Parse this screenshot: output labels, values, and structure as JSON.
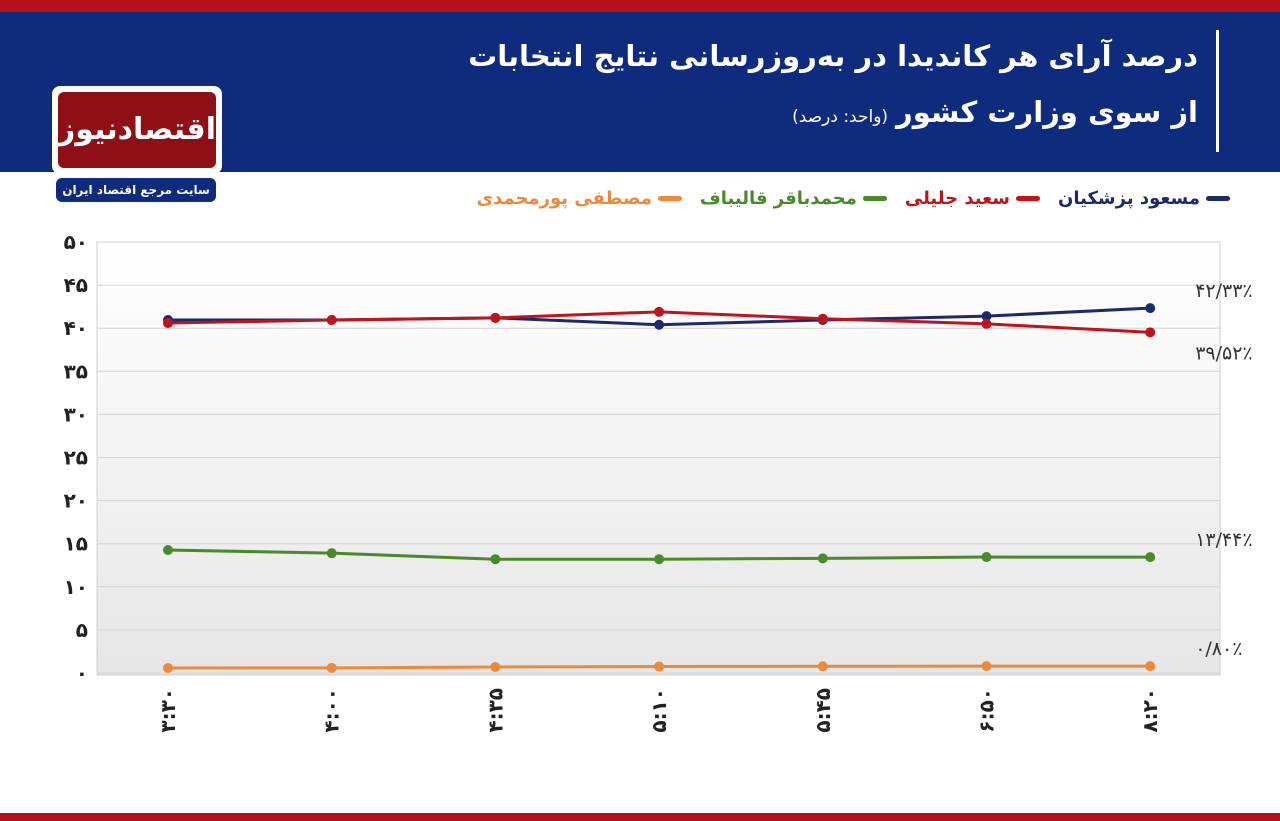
{
  "branding": {
    "name": "اقتصادنیوز",
    "tagline": "سایت مرجع اقتصاد ایران"
  },
  "chart_data": {
    "type": "line",
    "title": "درصد آرای هر کاندیدا در به‌روزرسانی نتایج انتخابات\nاز سوی وزارت کشور",
    "subtitle": "(واحد: درصد)",
    "categories": [
      "۳:۳۰",
      "۴:۰۰",
      "۴:۳۵",
      "۵:۱۰",
      "۵:۴۵",
      "۶:۵۰",
      "۸:۲۰"
    ],
    "series": [
      {
        "name": "مسعود پزشکیان",
        "color": "#1a2a6c",
        "values": [
          40.95,
          40.95,
          41.2,
          40.4,
          40.95,
          41.4,
          42.33
        ],
        "value_labels": [
          null,
          null,
          null,
          null,
          null,
          null,
          "۴۲/۳۳٪"
        ]
      },
      {
        "name": "سعید جلیلی",
        "color": "#c0141c",
        "values": [
          40.6,
          40.95,
          41.2,
          41.9,
          41.1,
          40.5,
          39.52
        ],
        "value_labels": [
          null,
          null,
          null,
          null,
          null,
          null,
          "۳۹/۵۲٪"
        ]
      },
      {
        "name": "محمدباقر قالیباف",
        "color": "#4a8a2a",
        "values": [
          14.27,
          13.9,
          13.2,
          13.2,
          13.3,
          13.45,
          13.44
        ],
        "value_labels": [
          null,
          null,
          null,
          null,
          null,
          null,
          "۱۳/۴۴٪"
        ]
      },
      {
        "name": "مصطفی پورمحمدی",
        "color": "#f0883a",
        "values": [
          0.58,
          0.6,
          0.7,
          0.75,
          0.78,
          0.8,
          0.8
        ],
        "value_labels": [
          null,
          null,
          null,
          null,
          null,
          null,
          "۰/۸۰٪"
        ]
      }
    ],
    "ylim": [
      0,
      50
    ],
    "yticks": [
      {
        "value": 0,
        "label": "۰"
      },
      {
        "value": 5,
        "label": "۵"
      },
      {
        "value": 10,
        "label": "۱۰"
      },
      {
        "value": 15,
        "label": "۱۵"
      },
      {
        "value": 20,
        "label": "۲۰"
      },
      {
        "value": 25,
        "label": "۲۵"
      },
      {
        "value": 30,
        "label": "۳۰"
      },
      {
        "value": 35,
        "label": "۳۵"
      },
      {
        "value": 40,
        "label": "۴۰"
      },
      {
        "value": 45,
        "label": "۴۵"
      },
      {
        "value": 50,
        "label": "۵۰"
      }
    ],
    "grid": true
  }
}
